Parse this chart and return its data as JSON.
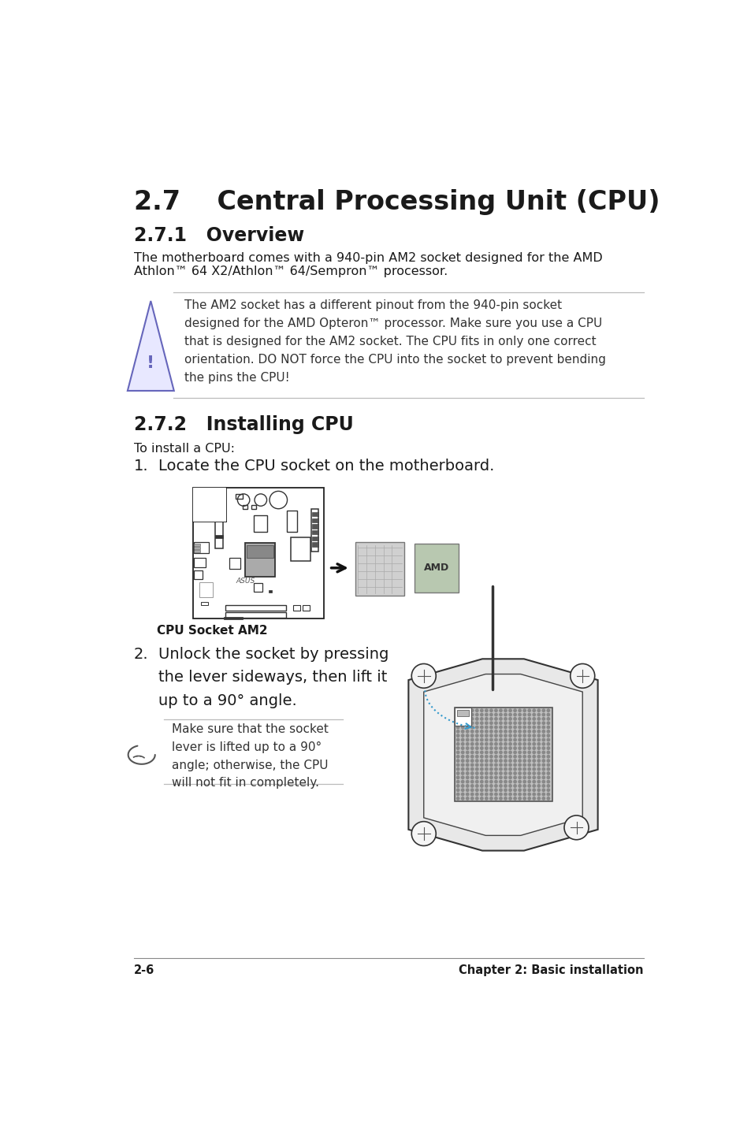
{
  "title": "2.7    Central Processing Unit (CPU)",
  "subtitle1": "2.7.1   Overview",
  "subtitle2": "2.7.2   Installing CPU",
  "body_text1_line1": "The motherboard comes with a 940-pin AM2 socket designed for the AMD",
  "body_text1_line2": "Athlon™ 64 X2/Athlon™ 64/Sempron™ processor.",
  "warning_text": "The AM2 socket has a different pinout from the 940-pin socket\ndesigned for the AMD Opteron™ processor. Make sure you use a CPU\nthat is designed for the AM2 socket. The CPU fits in only one correct\norientation. DO NOT force the CPU into the socket to prevent bending\nthe pins the CPU!",
  "install_intro": "To install a CPU:",
  "step1_label": "1.",
  "step1_text": "Locate the CPU socket on the motherboard.",
  "cpu_socket_label": "CPU Socket AM2",
  "step2_label": "2.",
  "step2_text": "Unlock the socket by pressing\nthe lever sideways, then lift it\nup to a 90° angle.",
  "note_text": "Make sure that the socket\nlever is lifted up to a 90°\nangle; otherwise, the CPU\nwill not fit in completely.",
  "footer_left": "2-6",
  "footer_right": "Chapter 2: Basic installation",
  "bg_color": "#ffffff",
  "text_color": "#1a1a1a",
  "line_color": "#bbbbbb",
  "warn_tri_fill": "#e8e8ff",
  "warn_tri_edge": "#6666bb",
  "warn_text_color": "#333333",
  "title_fontsize": 24,
  "subtitle_fontsize": 17,
  "body_fontsize": 11.5,
  "step_label_fontsize": 14,
  "step_text_fontsize": 14,
  "footer_fontsize": 10.5
}
